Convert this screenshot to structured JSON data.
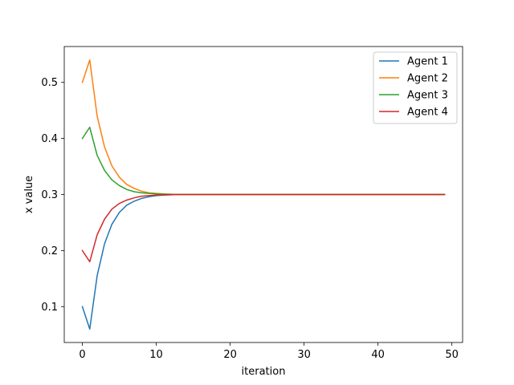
{
  "chart_data": {
    "type": "line",
    "title": "",
    "xlabel": "iteration",
    "ylabel": "x value",
    "xlim": [
      -2.45,
      51.45
    ],
    "ylim": [
      0.036,
      0.564
    ],
    "xticks": [
      0,
      10,
      20,
      30,
      40,
      50
    ],
    "yticks": [
      0.1,
      0.2,
      0.3,
      0.4,
      0.5
    ],
    "xtick_labels": [
      "0",
      "10",
      "20",
      "30",
      "40",
      "50"
    ],
    "ytick_labels": [
      "0.1",
      "0.2",
      "0.3",
      "0.4",
      "0.5"
    ],
    "grid": false,
    "legend": "top-right",
    "x": [
      0,
      1,
      2,
      3,
      4,
      5,
      6,
      7,
      8,
      9,
      10,
      11,
      12,
      13,
      14,
      15,
      16,
      17,
      18,
      19,
      20,
      21,
      22,
      23,
      24,
      25,
      26,
      27,
      28,
      29,
      30,
      31,
      32,
      33,
      34,
      35,
      36,
      37,
      38,
      39,
      40,
      41,
      42,
      43,
      44,
      45,
      46,
      47,
      48,
      49
    ],
    "series": [
      {
        "name": "Agent 1",
        "color": "#1f77b4",
        "values": [
          0.1,
          0.06,
          0.155,
          0.212,
          0.247,
          0.268,
          0.281,
          0.288,
          0.293,
          0.296,
          0.298,
          0.299,
          0.2995,
          0.3,
          0.3,
          0.3,
          0.3,
          0.3,
          0.3,
          0.3,
          0.3,
          0.3,
          0.3,
          0.3,
          0.3,
          0.3,
          0.3,
          0.3,
          0.3,
          0.3,
          0.3,
          0.3,
          0.3,
          0.3,
          0.3,
          0.3,
          0.3,
          0.3,
          0.3,
          0.3,
          0.3,
          0.3,
          0.3,
          0.3,
          0.3,
          0.3,
          0.3,
          0.3,
          0.3,
          0.3
        ]
      },
      {
        "name": "Agent 2",
        "color": "#ff7f0e",
        "values": [
          0.5,
          0.54,
          0.44,
          0.385,
          0.351,
          0.331,
          0.318,
          0.311,
          0.306,
          0.303,
          0.302,
          0.301,
          0.3005,
          0.3,
          0.3,
          0.3,
          0.3,
          0.3,
          0.3,
          0.3,
          0.3,
          0.3,
          0.3,
          0.3,
          0.3,
          0.3,
          0.3,
          0.3,
          0.3,
          0.3,
          0.3,
          0.3,
          0.3,
          0.3,
          0.3,
          0.3,
          0.3,
          0.3,
          0.3,
          0.3,
          0.3,
          0.3,
          0.3,
          0.3,
          0.3,
          0.3,
          0.3,
          0.3,
          0.3,
          0.3
        ]
      },
      {
        "name": "Agent 3",
        "color": "#2ca02c",
        "values": [
          0.4,
          0.42,
          0.37,
          0.343,
          0.326,
          0.316,
          0.309,
          0.305,
          0.303,
          0.302,
          0.301,
          0.3005,
          0.3002,
          0.3,
          0.3,
          0.3,
          0.3,
          0.3,
          0.3,
          0.3,
          0.3,
          0.3,
          0.3,
          0.3,
          0.3,
          0.3,
          0.3,
          0.3,
          0.3,
          0.3,
          0.3,
          0.3,
          0.3,
          0.3,
          0.3,
          0.3,
          0.3,
          0.3,
          0.3,
          0.3,
          0.3,
          0.3,
          0.3,
          0.3,
          0.3,
          0.3,
          0.3,
          0.3,
          0.3,
          0.3
        ]
      },
      {
        "name": "Agent 4",
        "color": "#d62728",
        "values": [
          0.2,
          0.18,
          0.228,
          0.256,
          0.274,
          0.284,
          0.29,
          0.294,
          0.297,
          0.298,
          0.299,
          0.2995,
          0.2998,
          0.3,
          0.3,
          0.3,
          0.3,
          0.3,
          0.3,
          0.3,
          0.3,
          0.3,
          0.3,
          0.3,
          0.3,
          0.3,
          0.3,
          0.3,
          0.3,
          0.3,
          0.3,
          0.3,
          0.3,
          0.3,
          0.3,
          0.3,
          0.3,
          0.3,
          0.3,
          0.3,
          0.3,
          0.3,
          0.3,
          0.3,
          0.3,
          0.3,
          0.3,
          0.3,
          0.3,
          0.3
        ]
      }
    ]
  }
}
